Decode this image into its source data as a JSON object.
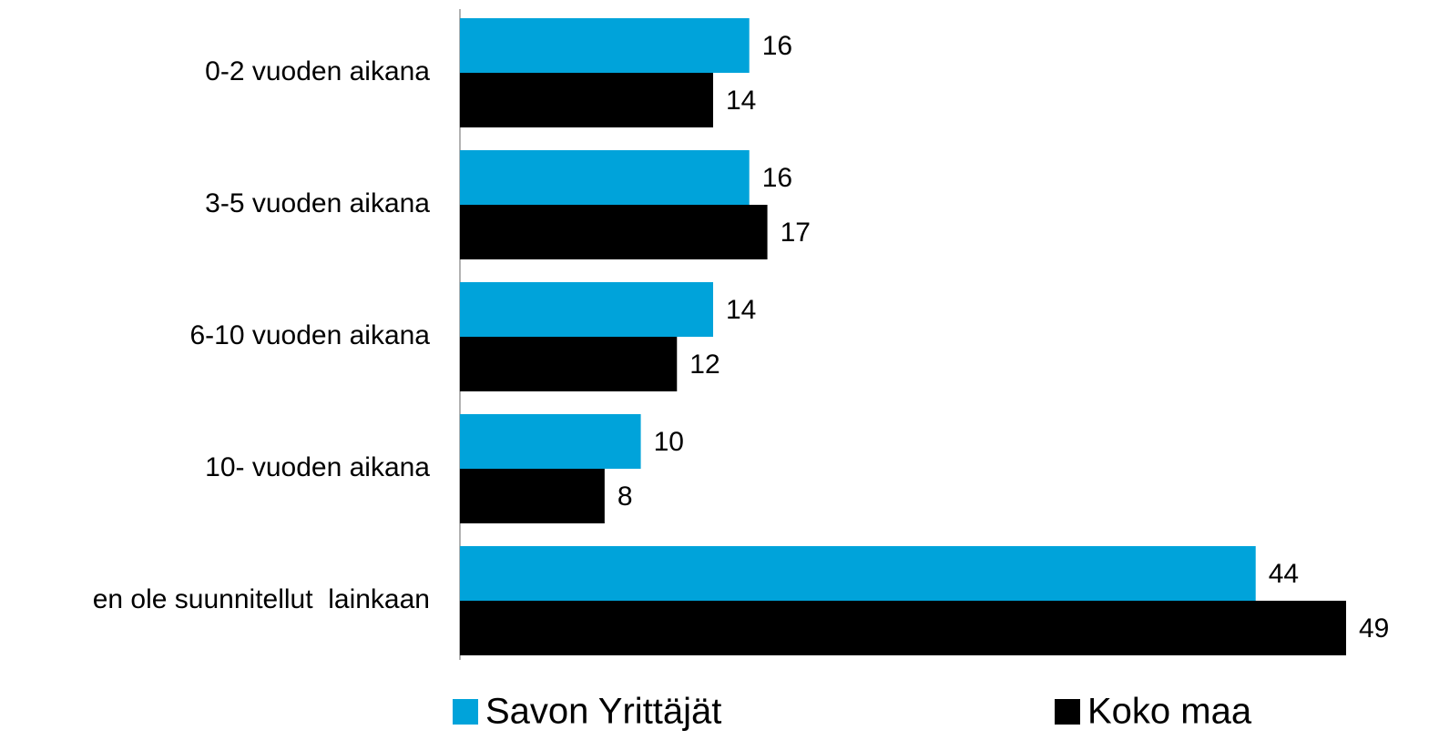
{
  "chart_data": {
    "type": "hbar",
    "categories": [
      "0-2 vuoden aikana",
      "3-5 vuoden aikana",
      "6-10 vuoden aikana",
      "10- vuoden aikana",
      "en ole suunnitellut  lainkaan"
    ],
    "series": [
      {
        "name": "Savon Yrittäjät",
        "color": "#00a3da",
        "values": [
          16,
          16,
          14,
          10,
          44
        ]
      },
      {
        "name": "Koko maa",
        "color": "#000000",
        "values": [
          14,
          17,
          12,
          8,
          49
        ]
      }
    ],
    "legend": "bottom"
  }
}
